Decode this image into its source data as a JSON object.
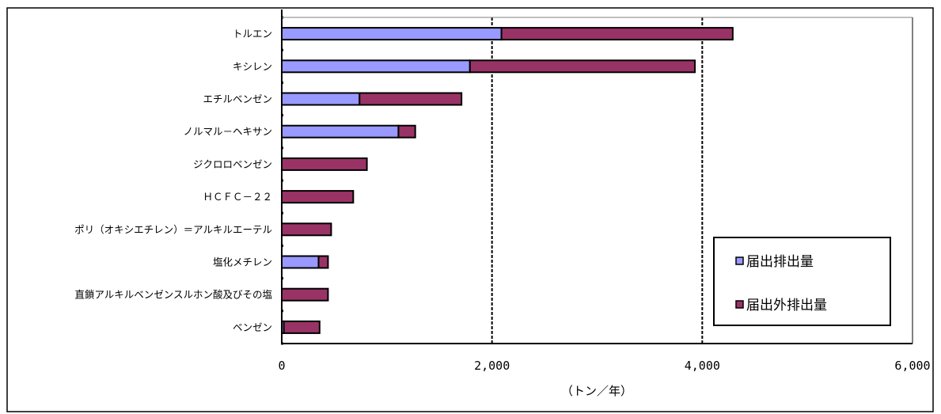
{
  "chart_data": {
    "type": "bar",
    "orientation": "horizontal",
    "stacked": true,
    "categories": [
      "トルエン",
      "キシレン",
      "エチルベンゼン",
      "ノルマル－ヘキサン",
      "ジクロロベンゼン",
      "ＨＣＦＣ－２２",
      "ポリ（オキシエチレン）＝アルキルエーテル",
      "塩化メチレン",
      "直鎖アルキルベンゼンスルホン酸及びその塩",
      "ベンゼン"
    ],
    "series": [
      {
        "name": "届出排出量",
        "color": "#9999ff",
        "values": [
          2090,
          1790,
          740,
          1110,
          0,
          0,
          0,
          350,
          0,
          20
        ]
      },
      {
        "name": "届出外排出量",
        "color": "#993366",
        "values": [
          2200,
          2140,
          970,
          160,
          810,
          680,
          470,
          90,
          440,
          340
        ]
      }
    ],
    "xlim": [
      0,
      6000
    ],
    "xticks": [
      0,
      2000,
      4000,
      6000
    ],
    "xtick_labels": [
      "0",
      "2,000",
      "4,000",
      "6,000"
    ],
    "xlabel": "（トン／年）",
    "gridlines": "vertical dashed",
    "legend_position": "bottom-right"
  }
}
